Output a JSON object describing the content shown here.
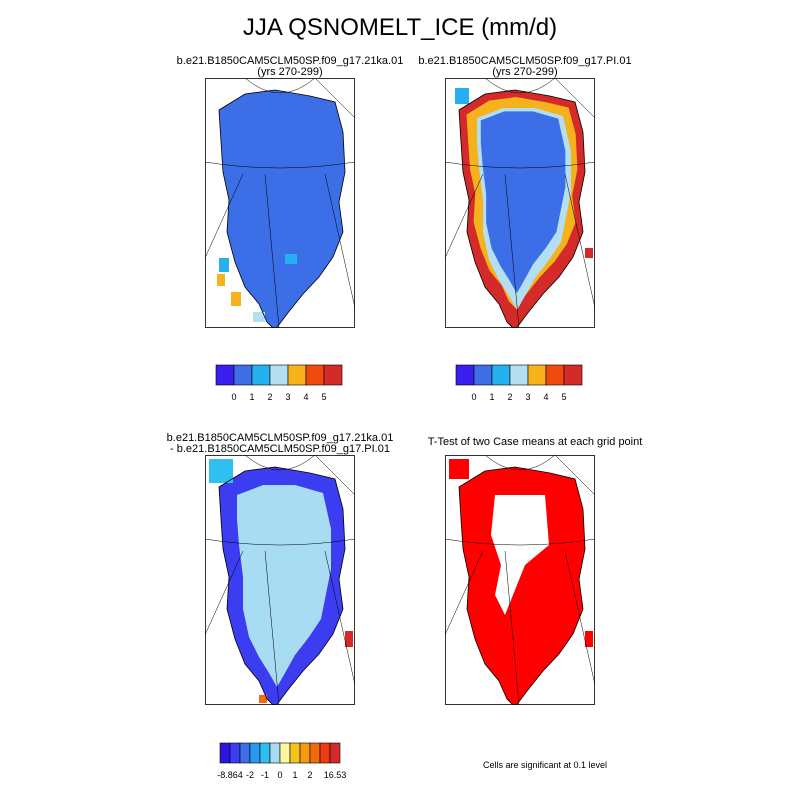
{
  "figure": {
    "title": "JJA QSNOMELT_ICE (mm/d)"
  },
  "panels": [
    {
      "id": "case1",
      "title_line1": "b.e21.B1850CAM5CLM50SP.f09_g17.21ka.01",
      "title_line2": "(yrs 270-299)"
    },
    {
      "id": "case2",
      "title_line1": "b.e21.B1850CAM5CLM50SP.f09_g17.PI.01",
      "title_line2": "(yrs 270-299)"
    },
    {
      "id": "diff",
      "title_line1": "b.e21.B1850CAM5CLM50SP.f09_g17.21ka.01",
      "title_line2": "- b.e21.B1850CAM5CLM50SP.f09_g17.PI.01"
    },
    {
      "id": "ttest",
      "title_line1": "T-Test of two Case means at each grid point",
      "title_line2": ""
    }
  ],
  "colorbar_abs": {
    "colors": [
      "#3a1ef0",
      "#3c6ee8",
      "#26b0f0",
      "#b4def2",
      "#f5b21a",
      "#f24a0e",
      "#d42a2a"
    ],
    "labels": [
      "0",
      "1",
      "2",
      "3",
      "4",
      "5"
    ]
  },
  "colorbar_diff": {
    "colors": [
      "#2b16e0",
      "#3c3cf0",
      "#3c6ee8",
      "#2898f0",
      "#30c0f0",
      "#a8dcf2",
      "#fff6a0",
      "#f5c418",
      "#f59a10",
      "#f26a0c",
      "#ee3a10",
      "#d42a2a"
    ],
    "labels": [
      "-8.864",
      "-2",
      "-1",
      "0",
      "1",
      "2",
      "16.53"
    ]
  },
  "ttest_note": "Cells are significant at 0.1 level",
  "ttest_color": "#ff0000"
}
